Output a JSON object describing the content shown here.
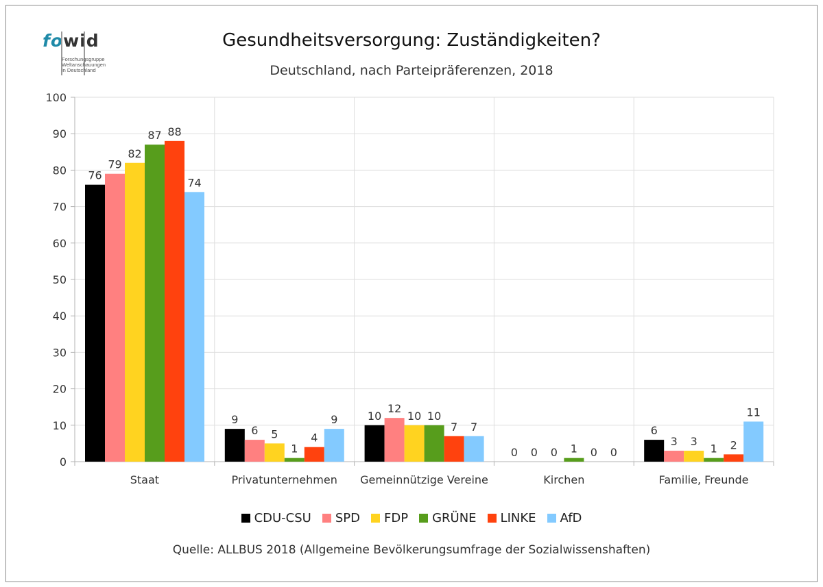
{
  "logo": {
    "word_fo": "fo",
    "word_wid": "wid",
    "sub": [
      "Forschungsgruppe",
      "Weltanschauungen",
      "in Deutschland"
    ]
  },
  "title": "Gesundheitsversorgung: Zuständigkeiten?",
  "subtitle": "Deutschland, nach Parteipräferenzen, 2018",
  "source": "Quelle: ALLBUS 2018 (Allgemeine Bevölkerungsumfrage der Sozialwissenshaften)",
  "chart_data": {
    "type": "bar",
    "categories": [
      "Staat",
      "Privatunternehmen",
      "Gemeinnützige Vereine",
      "Kirchen",
      "Familie, Freunde"
    ],
    "ylim": [
      0,
      100
    ],
    "yticks": [
      0,
      10,
      20,
      30,
      40,
      50,
      60,
      70,
      80,
      90,
      100
    ],
    "grid": true,
    "legend_position": "bottom",
    "series": [
      {
        "name": "CDU-CSU",
        "color": "#000000",
        "values": [
          76,
          9,
          10,
          0,
          6
        ]
      },
      {
        "name": "SPD",
        "color": "#ff8080",
        "values": [
          79,
          6,
          12,
          0,
          3
        ]
      },
      {
        "name": "FDP",
        "color": "#ffd320",
        "values": [
          82,
          5,
          10,
          0,
          3
        ]
      },
      {
        "name": "GRÜNE",
        "color": "#579d1c",
        "values": [
          87,
          1,
          10,
          1,
          1
        ]
      },
      {
        "name": "LINKE",
        "color": "#ff420e",
        "values": [
          88,
          4,
          7,
          0,
          2
        ]
      },
      {
        "name": "AfD",
        "color": "#83caff",
        "values": [
          74,
          9,
          7,
          0,
          11
        ]
      }
    ]
  }
}
